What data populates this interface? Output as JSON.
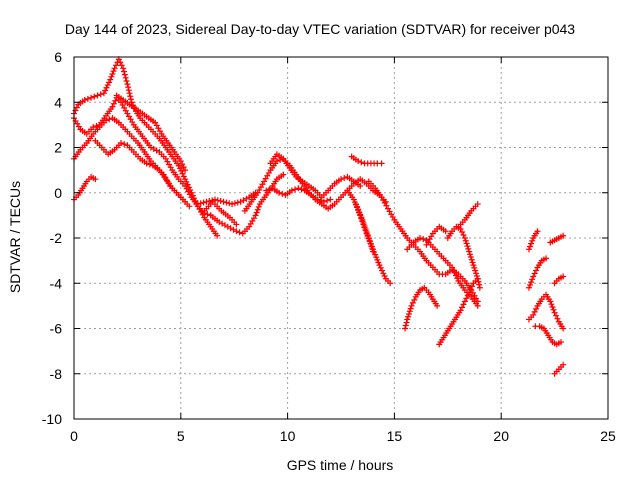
{
  "chart_data": {
    "type": "scatter",
    "title": "Day 144 of 2023, Sidereal Day-to-day VTEC variation (SDTVAR) for receiver p043",
    "xlabel": "GPS time / hours",
    "ylabel": "SDTVAR / TECUs",
    "xlim": [
      0,
      25
    ],
    "ylim": [
      -10,
      6
    ],
    "xticks": [
      0,
      5,
      10,
      15,
      20,
      25
    ],
    "yticks": [
      -10,
      -8,
      -6,
      -4,
      -2,
      0,
      2,
      4,
      6
    ],
    "grid": true,
    "marker": "+",
    "color": "#ff0000",
    "series": [
      {
        "points": [
          [
            0.0,
            3.3
          ],
          [
            0.3,
            2.8
          ],
          [
            0.6,
            2.6
          ],
          [
            0.9,
            2.9
          ],
          [
            1.2,
            3.0
          ],
          [
            1.5,
            3.4
          ],
          [
            1.8,
            3.8
          ],
          [
            2.0,
            4.2
          ],
          [
            2.2,
            4.0
          ],
          [
            2.5,
            3.5
          ],
          [
            2.8,
            3.0
          ],
          [
            3.2,
            2.5
          ],
          [
            3.6,
            2.0
          ],
          [
            4.0,
            1.8
          ],
          [
            4.3,
            1.5
          ],
          [
            4.6,
            1.0
          ],
          [
            4.9,
            0.6
          ],
          [
            5.2,
            0.3
          ],
          [
            5.5,
            -0.2
          ],
          [
            5.8,
            -0.6
          ],
          [
            6.1,
            -0.9
          ],
          [
            6.4,
            -1.0
          ]
        ]
      },
      {
        "points": [
          [
            0.0,
            3.5
          ],
          [
            0.2,
            3.9
          ],
          [
            0.5,
            4.1
          ],
          [
            0.8,
            4.2
          ],
          [
            1.1,
            4.3
          ],
          [
            1.4,
            4.4
          ],
          [
            1.7,
            5.0
          ],
          [
            1.9,
            5.5
          ],
          [
            2.1,
            5.9
          ],
          [
            2.3,
            5.5
          ],
          [
            2.5,
            4.8
          ],
          [
            2.7,
            4.0
          ],
          [
            2.9,
            3.6
          ],
          [
            3.1,
            3.3
          ],
          [
            3.4,
            3.0
          ],
          [
            3.7,
            2.7
          ],
          [
            4.0,
            2.4
          ],
          [
            4.3,
            2.0
          ],
          [
            4.6,
            1.6
          ],
          [
            4.9,
            1.2
          ],
          [
            5.2,
            0.6
          ],
          [
            5.5,
            0.0
          ],
          [
            5.8,
            -0.6
          ],
          [
            6.1,
            -1.1
          ],
          [
            6.4,
            -1.5
          ],
          [
            6.7,
            -1.9
          ]
        ]
      },
      {
        "points": [
          [
            0.0,
            1.5
          ],
          [
            0.3,
            1.9
          ],
          [
            0.6,
            2.2
          ],
          [
            0.9,
            2.6
          ],
          [
            1.2,
            2.9
          ],
          [
            1.5,
            3.2
          ],
          [
            1.8,
            3.3
          ],
          [
            2.1,
            3.1
          ],
          [
            2.4,
            2.8
          ],
          [
            2.7,
            2.5
          ],
          [
            3.0,
            2.2
          ],
          [
            3.3,
            1.8
          ],
          [
            3.6,
            1.4
          ],
          [
            3.9,
            1.1
          ],
          [
            4.2,
            0.8
          ],
          [
            4.5,
            0.3
          ],
          [
            4.8,
            0.0
          ],
          [
            5.1,
            -0.3
          ],
          [
            5.4,
            -0.6
          ]
        ]
      },
      {
        "points": [
          [
            1.0,
            2.3
          ],
          [
            1.3,
            2.0
          ],
          [
            1.6,
            1.7
          ],
          [
            1.9,
            1.9
          ],
          [
            2.2,
            2.2
          ],
          [
            2.5,
            2.1
          ],
          [
            2.8,
            1.8
          ],
          [
            3.1,
            1.5
          ],
          [
            3.4,
            1.3
          ],
          [
            3.7,
            1.2
          ],
          [
            4.0,
            1.0
          ],
          [
            4.3,
            0.6
          ],
          [
            4.6,
            0.2
          ],
          [
            4.9,
            -0.1
          ],
          [
            5.2,
            -0.4
          ]
        ]
      },
      {
        "points": [
          [
            2.0,
            4.3
          ],
          [
            2.3,
            4.1
          ],
          [
            2.6,
            3.9
          ],
          [
            2.9,
            3.7
          ],
          [
            3.2,
            3.5
          ],
          [
            3.5,
            3.3
          ],
          [
            3.8,
            3.1
          ],
          [
            4.1,
            2.6
          ],
          [
            4.4,
            2.2
          ],
          [
            4.7,
            1.8
          ],
          [
            5.0,
            1.4
          ],
          [
            5.2,
            1.0
          ]
        ]
      },
      {
        "points": [
          [
            0.0,
            -0.3
          ],
          [
            0.2,
            -0.1
          ],
          [
            0.4,
            0.2
          ],
          [
            0.6,
            0.5
          ],
          [
            0.8,
            0.7
          ],
          [
            1.0,
            0.6
          ]
        ]
      },
      {
        "points": [
          [
            5.8,
            -0.5
          ],
          [
            6.2,
            -0.4
          ],
          [
            6.6,
            -0.3
          ],
          [
            7.0,
            -0.4
          ],
          [
            7.4,
            -0.5
          ],
          [
            7.8,
            -0.4
          ],
          [
            8.2,
            -0.2
          ],
          [
            8.5,
            0.0
          ]
        ]
      },
      {
        "points": [
          [
            6.4,
            -1.0
          ],
          [
            6.8,
            -1.3
          ],
          [
            7.2,
            -1.5
          ],
          [
            7.6,
            -1.7
          ],
          [
            7.9,
            -1.8
          ],
          [
            8.2,
            -1.5
          ],
          [
            8.5,
            -1.0
          ],
          [
            8.7,
            -0.5
          ],
          [
            9.0,
            -0.1
          ],
          [
            9.3,
            0.3
          ],
          [
            9.5,
            0.6
          ],
          [
            9.8,
            0.8
          ]
        ]
      },
      {
        "points": [
          [
            6.1,
            -0.8
          ],
          [
            6.5,
            -0.4
          ],
          [
            6.9,
            -0.8
          ],
          [
            7.3,
            -1.1
          ],
          [
            7.6,
            -1.4
          ]
        ]
      },
      {
        "points": [
          [
            8.0,
            -0.8
          ],
          [
            8.3,
            -0.4
          ],
          [
            8.6,
            0.0
          ],
          [
            8.9,
            0.5
          ],
          [
            9.2,
            1.0
          ],
          [
            9.5,
            1.4
          ],
          [
            9.8,
            1.5
          ],
          [
            10.1,
            1.2
          ],
          [
            10.4,
            0.8
          ],
          [
            10.7,
            0.4
          ],
          [
            11.0,
            0.0
          ],
          [
            11.3,
            -0.3
          ],
          [
            11.6,
            -0.5
          ],
          [
            11.9,
            -0.7
          ],
          [
            12.2,
            -0.5
          ],
          [
            12.5,
            -0.2
          ],
          [
            12.8,
            0.1
          ],
          [
            13.1,
            0.4
          ],
          [
            13.4,
            0.6
          ],
          [
            13.7,
            0.4
          ],
          [
            14.0,
            0.1
          ],
          [
            14.3,
            -0.1
          ],
          [
            14.6,
            -0.4
          ]
        ]
      },
      {
        "points": [
          [
            9.2,
            1.3
          ],
          [
            9.5,
            1.7
          ],
          [
            9.8,
            1.5
          ],
          [
            10.1,
            1.1
          ],
          [
            10.4,
            0.7
          ],
          [
            10.7,
            0.5
          ],
          [
            11.0,
            0.3
          ],
          [
            11.3,
            0.1
          ],
          [
            11.6,
            -0.2
          ],
          [
            11.9,
            0.1
          ],
          [
            12.2,
            0.4
          ],
          [
            12.5,
            0.6
          ],
          [
            12.8,
            0.7
          ],
          [
            13.1,
            0.5
          ],
          [
            13.4,
            0.3
          ]
        ]
      },
      {
        "points": [
          [
            9.0,
            0.1
          ],
          [
            9.3,
            0.2
          ],
          [
            9.6,
            0.0
          ],
          [
            9.9,
            -0.1
          ],
          [
            10.2,
            0.1
          ],
          [
            10.5,
            0.2
          ],
          [
            10.8,
            0.1
          ],
          [
            11.1,
            -0.1
          ],
          [
            11.4,
            -0.3
          ],
          [
            11.7,
            -0.4
          ],
          [
            12.0,
            -0.3
          ]
        ]
      },
      {
        "points": [
          [
            13.0,
            1.6
          ],
          [
            13.3,
            1.4
          ],
          [
            13.6,
            1.3
          ],
          [
            13.9,
            1.3
          ],
          [
            14.2,
            1.3
          ],
          [
            14.4,
            1.3
          ]
        ]
      },
      {
        "points": [
          [
            12.8,
            0.1
          ],
          [
            13.1,
            -0.3
          ],
          [
            13.4,
            -1.0
          ],
          [
            13.7,
            -1.8
          ],
          [
            14.0,
            -2.5
          ],
          [
            14.3,
            -3.2
          ],
          [
            14.6,
            -3.8
          ],
          [
            14.8,
            -4.0
          ]
        ]
      },
      {
        "points": [
          [
            13.2,
            -0.5
          ],
          [
            13.5,
            -1.2
          ],
          [
            13.8,
            -2.0
          ],
          [
            14.0,
            -2.6
          ]
        ]
      },
      {
        "points": [
          [
            13.8,
            0.5
          ],
          [
            14.1,
            0.2
          ],
          [
            14.4,
            -0.2
          ],
          [
            14.7,
            -0.7
          ],
          [
            15.0,
            -1.2
          ],
          [
            15.3,
            -1.6
          ],
          [
            15.6,
            -2.0
          ],
          [
            15.9,
            -2.3
          ],
          [
            16.2,
            -2.6
          ],
          [
            16.5,
            -3.0
          ],
          [
            16.8,
            -3.3
          ],
          [
            17.1,
            -3.6
          ],
          [
            17.4,
            -3.6
          ],
          [
            17.7,
            -3.4
          ],
          [
            18.0,
            -3.6
          ],
          [
            18.3,
            -3.9
          ],
          [
            18.6,
            -4.3
          ],
          [
            18.9,
            -4.8
          ]
        ]
      },
      {
        "points": [
          [
            15.6,
            -2.5
          ],
          [
            15.9,
            -2.2
          ],
          [
            16.2,
            -2.0
          ],
          [
            16.5,
            -2.1
          ],
          [
            16.8,
            -2.4
          ],
          [
            17.1,
            -2.7
          ],
          [
            17.4,
            -3.0
          ],
          [
            17.7,
            -3.3
          ],
          [
            18.0,
            -3.9
          ],
          [
            18.3,
            -4.3
          ],
          [
            18.6,
            -4.6
          ],
          [
            18.9,
            -5.0
          ]
        ]
      },
      {
        "points": [
          [
            15.5,
            -6.0
          ],
          [
            15.6,
            -5.6
          ],
          [
            15.8,
            -5.0
          ],
          [
            16.0,
            -4.6
          ],
          [
            16.2,
            -4.3
          ],
          [
            16.4,
            -4.2
          ],
          [
            16.6,
            -4.4
          ],
          [
            16.8,
            -4.7
          ],
          [
            17.0,
            -5.0
          ]
        ]
      },
      {
        "points": [
          [
            17.1,
            -6.7
          ],
          [
            17.3,
            -6.4
          ],
          [
            17.5,
            -6.1
          ],
          [
            17.7,
            -5.8
          ],
          [
            17.9,
            -5.5
          ],
          [
            18.1,
            -5.2
          ],
          [
            18.3,
            -4.8
          ],
          [
            18.5,
            -4.4
          ],
          [
            18.7,
            -4.0
          ],
          [
            18.9,
            -3.8
          ],
          [
            19.0,
            -4.2
          ]
        ]
      },
      {
        "points": [
          [
            17.5,
            -2.0
          ],
          [
            17.7,
            -1.7
          ],
          [
            17.9,
            -1.5
          ],
          [
            18.1,
            -1.6
          ],
          [
            18.3,
            -2.0
          ],
          [
            18.5,
            -2.6
          ],
          [
            18.7,
            -3.2
          ],
          [
            18.9,
            -3.8
          ]
        ]
      },
      {
        "points": [
          [
            18.0,
            -1.5
          ],
          [
            18.3,
            -1.2
          ],
          [
            18.6,
            -0.8
          ],
          [
            18.9,
            -0.5
          ]
        ]
      },
      {
        "points": [
          [
            16.5,
            -2.3
          ],
          [
            16.8,
            -1.8
          ],
          [
            17.1,
            -1.5
          ],
          [
            17.4,
            -1.7
          ]
        ]
      },
      {
        "points": [
          [
            21.3,
            -2.5
          ],
          [
            21.5,
            -2.0
          ],
          [
            21.7,
            -1.7
          ]
        ]
      },
      {
        "points": [
          [
            21.3,
            -4.2
          ],
          [
            21.5,
            -3.7
          ],
          [
            21.7,
            -3.3
          ],
          [
            21.9,
            -3.0
          ],
          [
            22.1,
            -2.9
          ]
        ]
      },
      {
        "points": [
          [
            21.3,
            -5.6
          ],
          [
            21.5,
            -5.4
          ],
          [
            21.7,
            -5.0
          ],
          [
            21.9,
            -4.7
          ],
          [
            22.1,
            -4.5
          ],
          [
            22.3,
            -4.8
          ],
          [
            22.5,
            -5.3
          ],
          [
            22.7,
            -5.7
          ],
          [
            22.9,
            -6.0
          ]
        ]
      },
      {
        "points": [
          [
            21.6,
            -5.9
          ],
          [
            21.8,
            -5.9
          ],
          [
            22.0,
            -6.0
          ],
          [
            22.2,
            -6.3
          ],
          [
            22.4,
            -6.6
          ],
          [
            22.6,
            -6.7
          ],
          [
            22.8,
            -6.6
          ]
        ]
      },
      {
        "points": [
          [
            22.3,
            -2.2
          ],
          [
            22.5,
            -2.1
          ],
          [
            22.7,
            -2.0
          ],
          [
            22.9,
            -1.9
          ]
        ]
      },
      {
        "points": [
          [
            22.5,
            -4.0
          ],
          [
            22.7,
            -3.8
          ],
          [
            22.9,
            -3.7
          ]
        ]
      },
      {
        "points": [
          [
            22.5,
            -8.0
          ],
          [
            22.7,
            -7.8
          ],
          [
            22.9,
            -7.6
          ]
        ]
      }
    ]
  }
}
